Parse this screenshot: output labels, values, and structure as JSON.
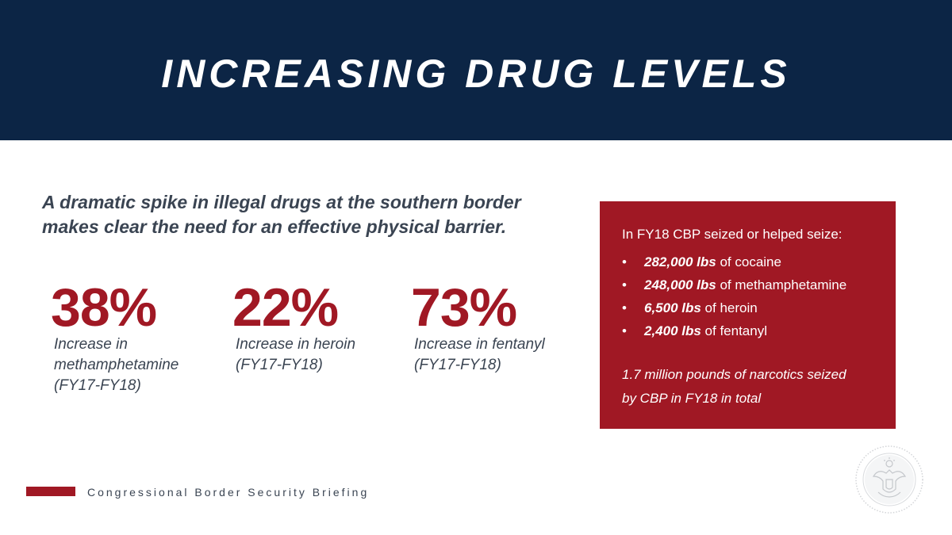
{
  "header": {
    "title": "INCREASING DRUG LEVELS"
  },
  "lead": {
    "line1": "A dramatic spike in illegal drugs at the southern border",
    "line2": "makes clear the need for an effective physical barrier."
  },
  "stats": [
    {
      "value": "38%",
      "desc_line1": "Increase in",
      "desc_line2": "methamphetamine",
      "desc_line3": "(FY17-FY18)"
    },
    {
      "value": "22%",
      "desc_line1": "Increase in heroin",
      "desc_line2": "(FY17-FY18)"
    },
    {
      "value": "73%",
      "desc_line1": "Increase in fentanyl",
      "desc_line2": "(FY17-FY18)"
    }
  ],
  "panel": {
    "intro": "In FY18 CBP seized or helped seize:",
    "bullet_glyph": "•",
    "items": [
      {
        "amount": "282,000 lbs",
        "rest": " of cocaine"
      },
      {
        "amount": "248,000 lbs",
        "rest": " of methamphetamine"
      },
      {
        "amount": "6,500 lbs",
        "rest": " of heroin"
      },
      {
        "amount": "2,400 lbs",
        "rest": " of fentanyl"
      }
    ],
    "total_line1": "1.7 million pounds of narcotics seized",
    "total_line2": "by CBP in FY18 in total"
  },
  "footer": {
    "text": "Congressional Border Security Briefing"
  },
  "colors": {
    "navy": "#0c2545",
    "red": "#a01824",
    "text_gray": "#3a4452"
  },
  "icons": {
    "seal": "presidential-seal-icon"
  }
}
